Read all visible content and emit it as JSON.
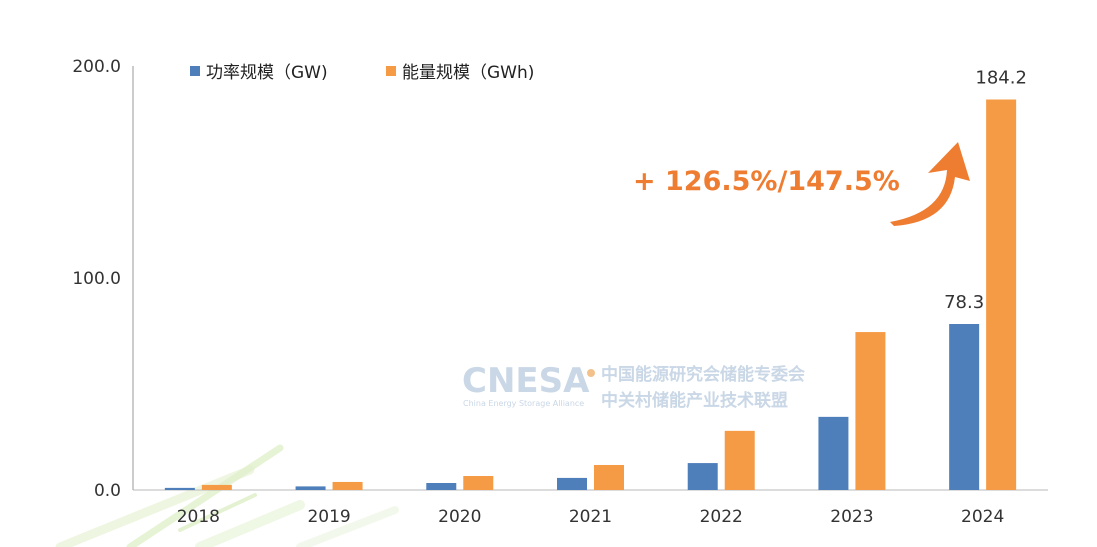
{
  "chart_data": {
    "type": "bar",
    "categories": [
      "2018",
      "2019",
      "2020",
      "2021",
      "2022",
      "2023",
      "2024"
    ],
    "series": [
      {
        "name": "功率规模（GW)",
        "color": "#4f7fba",
        "values": [
          1.0,
          1.7,
          3.3,
          5.7,
          12.7,
          34.5,
          78.3
        ]
      },
      {
        "name": "能量规模（GWh)",
        "color": "#f59a45",
        "values": [
          2.4,
          3.8,
          6.6,
          11.8,
          27.9,
          74.5,
          184.2
        ]
      }
    ],
    "ylim": [
      0,
      200
    ],
    "yticks": [
      "0.0",
      "100.0",
      "200.0"
    ],
    "ytick_values": [
      0,
      100,
      200
    ],
    "data_labels": [
      {
        "series": 0,
        "index": 6,
        "text": "78.3"
      },
      {
        "series": 1,
        "index": 6,
        "text": "184.2"
      }
    ],
    "annotation": "+ 126.5%/147.5%",
    "annotation_color": "#ee7d31"
  },
  "watermark": {
    "logo": "CNESA",
    "logo_sub": "China Energy Storage Alliance",
    "line1": "中国能源研究会储能专委会",
    "line2": "中关村储能产业技术联盟"
  }
}
